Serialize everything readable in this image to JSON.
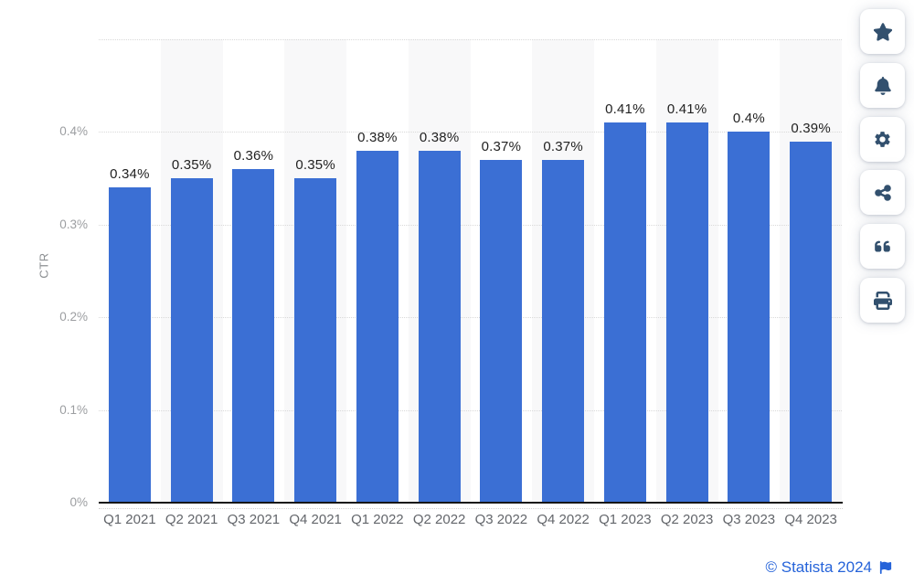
{
  "chart_data": {
    "type": "bar",
    "title": "",
    "categories": [
      "Q1 2021",
      "Q2 2021",
      "Q3 2021",
      "Q4 2021",
      "Q1 2022",
      "Q2 2022",
      "Q3 2022",
      "Q4 2022",
      "Q1 2023",
      "Q2 2023",
      "Q3 2023",
      "Q4 2023"
    ],
    "values": [
      0.34,
      0.35,
      0.36,
      0.35,
      0.38,
      0.38,
      0.37,
      0.37,
      0.41,
      0.41,
      0.4,
      0.39
    ],
    "value_labels": [
      "0.34%",
      "0.35%",
      "0.36%",
      "0.35%",
      "0.38%",
      "0.38%",
      "0.37%",
      "0.37%",
      "0.41%",
      "0.41%",
      "0.4%",
      "0.39%"
    ],
    "xlabel": "",
    "ylabel": "CTR",
    "ylim": [
      0,
      0.5
    ],
    "ytick_values": [
      0,
      0.1,
      0.2,
      0.3,
      0.4
    ],
    "ytick_labels": [
      "0%",
      "0.1%",
      "0.2%",
      "0.3%",
      "0.4%"
    ],
    "grid_values": [
      0.1,
      0.2,
      0.3,
      0.4,
      0.5
    ],
    "grid_style": "horizontal-dotted",
    "legend": "none",
    "alternating_column_bands": true,
    "colors": {
      "bar": "#3b6fd4",
      "value_label": "#222222",
      "axis_line": "#161616",
      "grid_line": "#d9d9d9",
      "column_band": "#f8f8f9",
      "ytick_label": "#9c9ea1",
      "xtick_label": "#63666b"
    }
  },
  "toolbar": {
    "buttons": [
      {
        "name": "favorite",
        "icon": "star-icon"
      },
      {
        "name": "alerts",
        "icon": "bell-icon"
      },
      {
        "name": "settings",
        "icon": "gear-icon"
      },
      {
        "name": "share",
        "icon": "share-icon"
      },
      {
        "name": "cite",
        "icon": "quote-icon"
      },
      {
        "name": "print",
        "icon": "printer-icon"
      }
    ],
    "icon_color": "#32506e"
  },
  "footer": {
    "copyright": "© Statista 2024",
    "link_color": "#2563d9",
    "flag_icon": "flag-icon"
  }
}
